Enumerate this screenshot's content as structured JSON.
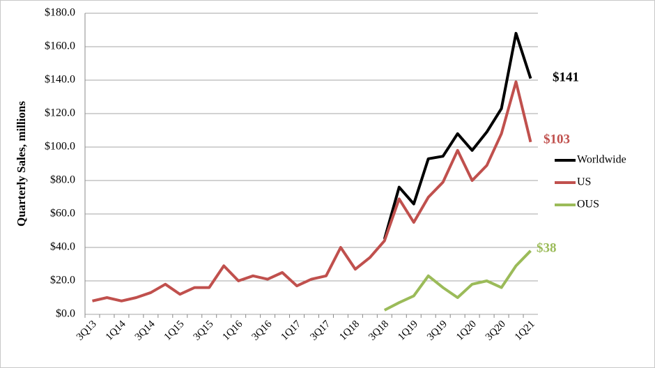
{
  "chart_data": {
    "type": "line",
    "ylabel": "Quarterly Sales, millions",
    "categories": [
      "3Q13",
      null,
      "1Q14",
      null,
      "3Q14",
      null,
      "1Q15",
      null,
      "3Q15",
      null,
      "1Q16",
      null,
      "3Q16",
      null,
      "1Q17",
      null,
      "3Q17",
      null,
      "1Q18",
      null,
      "3Q18",
      null,
      "1Q19",
      null,
      "3Q19",
      null,
      "1Q20",
      null,
      "3Q20",
      null,
      "1Q21"
    ],
    "series": [
      {
        "name": "Worldwide",
        "color": "#000000",
        "values": [
          null,
          null,
          null,
          null,
          null,
          null,
          null,
          null,
          null,
          null,
          null,
          null,
          null,
          null,
          null,
          null,
          null,
          null,
          null,
          null,
          45,
          76,
          66,
          93,
          94.5,
          108,
          98,
          109,
          123,
          168,
          141
        ],
        "value_labels": [
          null,
          null,
          null,
          null,
          null,
          null,
          null,
          null,
          null,
          null,
          null,
          null,
          null,
          null,
          null,
          null,
          null,
          null,
          null,
          null,
          null,
          null,
          null,
          null,
          null,
          null,
          null,
          null,
          null,
          null,
          "$141"
        ]
      },
      {
        "name": "US",
        "color": "#c0504d",
        "values": [
          8,
          10,
          8,
          10,
          13,
          18,
          12,
          16,
          16,
          29,
          20,
          23,
          21,
          25,
          17,
          21,
          23,
          40,
          27,
          34,
          44,
          69,
          55,
          70,
          79,
          98,
          80,
          89,
          108,
          139,
          103
        ],
        "value_labels": [
          null,
          null,
          null,
          null,
          null,
          null,
          null,
          null,
          null,
          null,
          null,
          null,
          null,
          null,
          null,
          null,
          null,
          null,
          null,
          null,
          null,
          null,
          null,
          null,
          null,
          null,
          null,
          null,
          null,
          null,
          "$103"
        ]
      },
      {
        "name": "OUS",
        "color": "#9bbb59",
        "values": [
          null,
          null,
          null,
          null,
          null,
          null,
          null,
          null,
          null,
          null,
          null,
          null,
          null,
          null,
          null,
          null,
          null,
          null,
          null,
          null,
          2.5,
          7,
          11,
          23,
          16,
          10,
          18,
          20,
          16,
          29,
          38
        ],
        "value_labels": [
          null,
          null,
          null,
          null,
          null,
          null,
          null,
          null,
          null,
          null,
          null,
          null,
          null,
          null,
          null,
          null,
          null,
          null,
          null,
          null,
          null,
          null,
          null,
          null,
          null,
          null,
          null,
          null,
          null,
          null,
          "$38"
        ]
      }
    ],
    "ylim": [
      0,
      180
    ],
    "yticks": [
      {
        "value": 0,
        "label": "$0.0"
      },
      {
        "value": 20,
        "label": "$20.0"
      },
      {
        "value": 40,
        "label": "$40.0"
      },
      {
        "value": 60,
        "label": "$60.0"
      },
      {
        "value": 80,
        "label": "$80.0"
      },
      {
        "value": 100,
        "label": "$100.0"
      },
      {
        "value": 120,
        "label": "$120.0"
      },
      {
        "value": 140,
        "label": "$140.0"
      },
      {
        "value": 160,
        "label": "$160.0"
      },
      {
        "value": 180,
        "label": "$180.0"
      }
    ],
    "grid": true
  }
}
